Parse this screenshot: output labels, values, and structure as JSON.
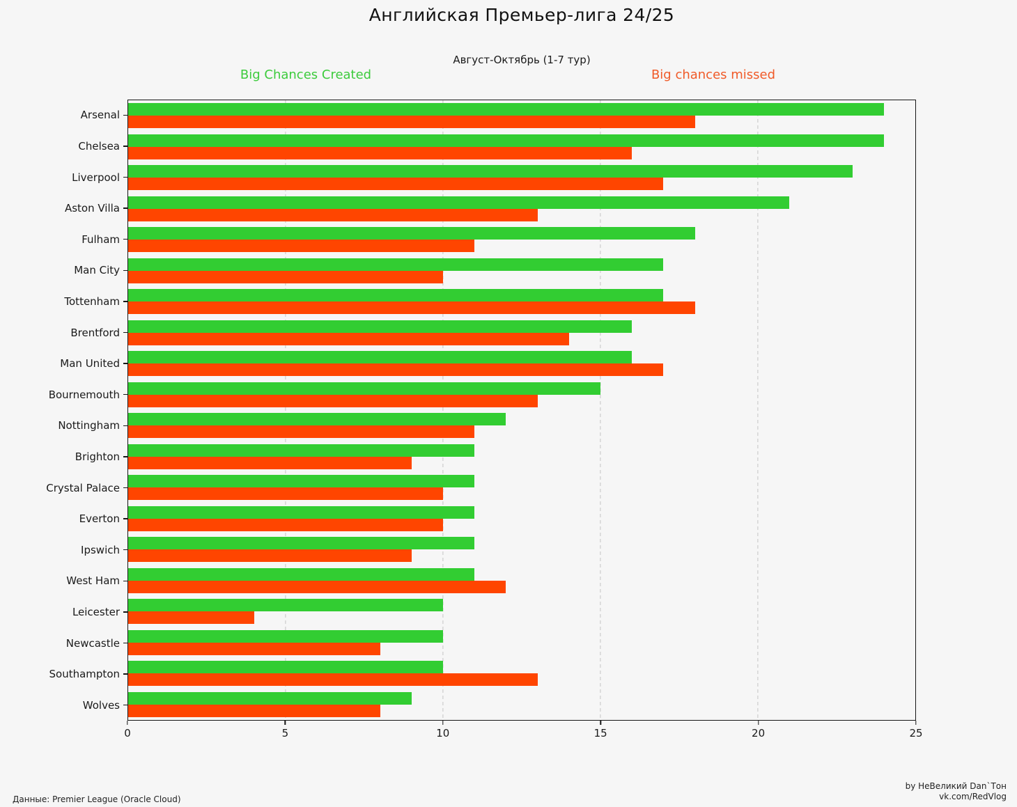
{
  "header": {
    "title": "Английская Премьер-лига 24/25",
    "subtitle": "Август-Октябрь (1-7 тур)"
  },
  "legend": {
    "created": "Big Chances Created",
    "missed": "Big chances missed"
  },
  "footer": {
    "source": "Данные: Premier League (Oracle Cloud)",
    "author": "by НеВеликий Dan`Тон",
    "site": "vk.com/RedVlog"
  },
  "colors": {
    "created": "#32CD32",
    "missed": "#FF4500",
    "created_label_text": "#3CCB3C",
    "missed_label_text": "#F05A28",
    "background": "#f6f6f6",
    "grid": "#c4c4c4",
    "spine": "#151515"
  },
  "chart_data": {
    "type": "bar",
    "orientation": "horizontal",
    "title": "Английская Премьер-лига 24/25",
    "subtitle": "Август-Октябрь (1-7 тур)",
    "categories": [
      "Arsenal",
      "Chelsea",
      "Liverpool",
      "Aston Villa",
      "Fulham",
      "Man City",
      "Tottenham",
      "Brentford",
      "Man United",
      "Bournemouth",
      "Nottingham",
      "Brighton",
      "Crystal Palace",
      "Everton",
      "Ipswich",
      "West Ham",
      "Leicester",
      "Newcastle",
      "Southampton",
      "Wolves"
    ],
    "series": [
      {
        "name": "Big Chances Created",
        "color": "#32CD32",
        "values": [
          24,
          24,
          23,
          21,
          18,
          17,
          17,
          16,
          16,
          15,
          12,
          11,
          11,
          11,
          11,
          11,
          10,
          10,
          10,
          9
        ]
      },
      {
        "name": "Big chances missed",
        "color": "#FF4500",
        "values": [
          18,
          16,
          17,
          13,
          11,
          10,
          18,
          14,
          17,
          13,
          11,
          9,
          10,
          10,
          9,
          12,
          4,
          8,
          13,
          8
        ]
      }
    ],
    "xlim": [
      0,
      25
    ],
    "xticks": [
      0,
      5,
      10,
      15,
      20,
      25
    ],
    "grid": "vertical dashed gridlines at xticks",
    "legend_position": "top (green label left, orange label right)"
  }
}
